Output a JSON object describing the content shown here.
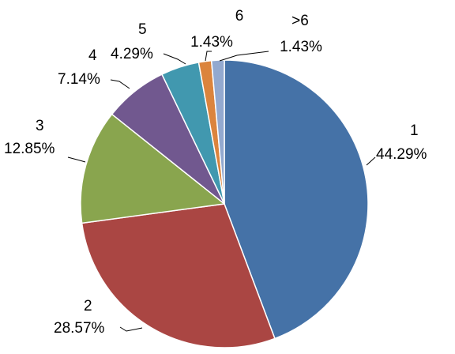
{
  "chart_data": {
    "type": "pie",
    "title": "",
    "start_angle_deg": 0,
    "direction": "clockwise",
    "slices": [
      {
        "name": "1",
        "value": 44.29,
        "label": "44.29%",
        "color": "#4572A7"
      },
      {
        "name": "2",
        "value": 28.57,
        "label": "28.57%",
        "color": "#AA4643"
      },
      {
        "name": "3",
        "value": 12.85,
        "label": "12.85%",
        "color": "#89A54E"
      },
      {
        "name": "4",
        "value": 7.14,
        "label": "7.14%",
        "color": "#71588F"
      },
      {
        "name": "5",
        "value": 4.29,
        "label": "4.29%",
        "color": "#4198AF"
      },
      {
        "name": "6",
        "value": 1.43,
        "label": "1.43%",
        "color": "#DB843D"
      },
      {
        "name": ">6",
        "value": 1.43,
        "label": "1.43%",
        "color": "#93A9CF"
      }
    ]
  }
}
